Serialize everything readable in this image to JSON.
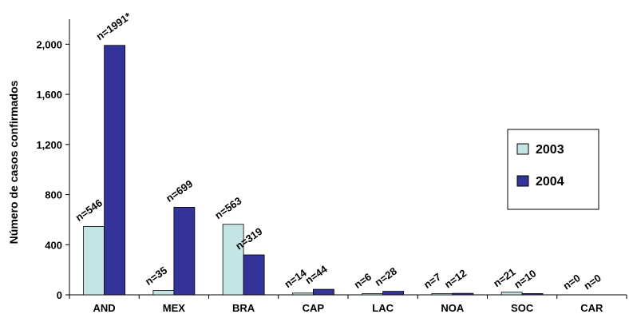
{
  "chart_data": {
    "type": "bar",
    "ylabel": "Número de casos confirmados",
    "xlabel": "",
    "ylim": [
      0,
      2200
    ],
    "yticks": [
      0,
      400,
      800,
      1200,
      1600,
      2000
    ],
    "ytick_labels": [
      "0",
      "400",
      "800",
      "1,200",
      "1,600",
      "2,000"
    ],
    "categories": [
      "AND",
      "MEX",
      "BRA",
      "CAP",
      "LAC",
      "NOA",
      "SOC",
      "CAR"
    ],
    "series": [
      {
        "name": "2003",
        "color": "#c5e5e5",
        "values": [
          546,
          35,
          563,
          14,
          6,
          7,
          21,
          0
        ],
        "labels": [
          "n=546",
          "n=35",
          "n=563",
          "n=14",
          "n=6",
          "n=7",
          "n=21",
          "n=0"
        ]
      },
      {
        "name": "2004",
        "color": "#333399",
        "values": [
          1991,
          699,
          319,
          44,
          28,
          12,
          10,
          0
        ],
        "labels": [
          "n=1991*",
          "n=699",
          "n=319",
          "n=44",
          "n=28",
          "n=12",
          "n=10",
          "n=0"
        ]
      }
    ],
    "legend": {
      "placement": "right",
      "entries": [
        "2003",
        "2004"
      ]
    },
    "grid": false
  }
}
